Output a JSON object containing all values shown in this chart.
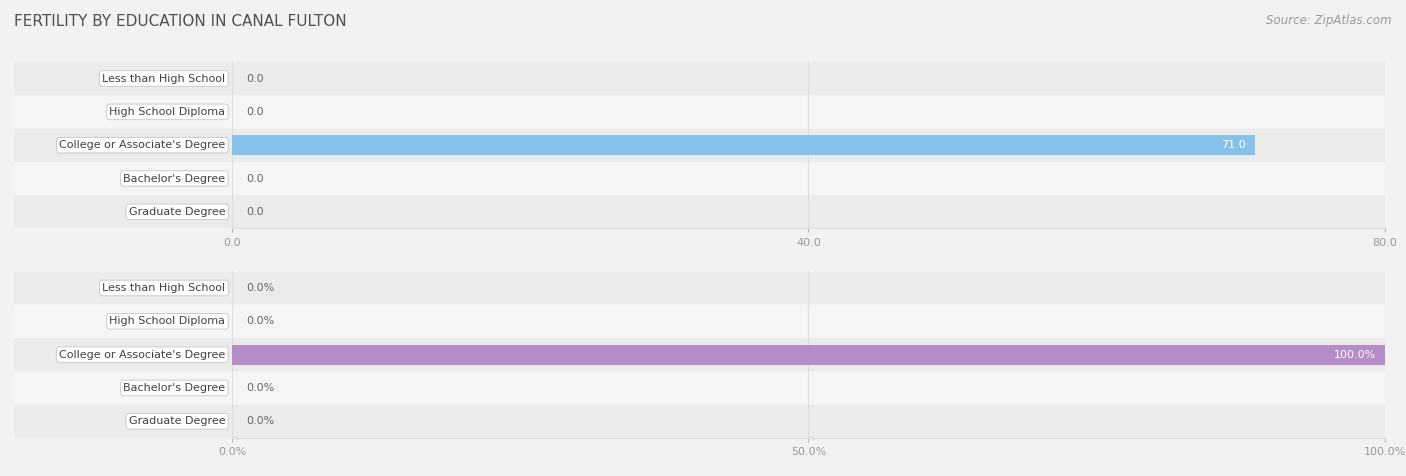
{
  "title": "FERTILITY BY EDUCATION IN CANAL FULTON",
  "source": "Source: ZipAtlas.com",
  "categories": [
    "Less than High School",
    "High School Diploma",
    "College or Associate's Degree",
    "Bachelor's Degree",
    "Graduate Degree"
  ],
  "chart1": {
    "values": [
      0.0,
      0.0,
      71.0,
      0.0,
      0.0
    ],
    "max_val": 80.0,
    "tick_vals": [
      0.0,
      40.0,
      80.0
    ],
    "tick_labels": [
      "0.0",
      "40.0",
      "80.0"
    ],
    "bar_color": "#85C1E9",
    "bar_height": 0.6
  },
  "chart2": {
    "values": [
      0.0,
      0.0,
      100.0,
      0.0,
      0.0
    ],
    "max_val": 100.0,
    "tick_vals": [
      0.0,
      50.0,
      100.0
    ],
    "tick_labels": [
      "0.0%",
      "50.0%",
      "100.0%"
    ],
    "bar_color": "#B48DC8",
    "bar_height": 0.6
  },
  "label_box_facecolor": "#FFFFFF",
  "label_box_edgecolor": "#CCCCCC",
  "row_bg_even": "#EBEBEB",
  "row_bg_odd": "#F5F5F5",
  "fig_bg": "#F2F2F2",
  "title_color": "#505050",
  "tick_color": "#999999",
  "grid_color": "#DDDDDD",
  "value_color_inside": "#FFFFFF",
  "value_color_outside": "#666666",
  "label_font_size": 8.0,
  "value_font_size": 8.0,
  "tick_font_size": 8.0,
  "title_font_size": 11.0,
  "source_font_size": 8.5
}
